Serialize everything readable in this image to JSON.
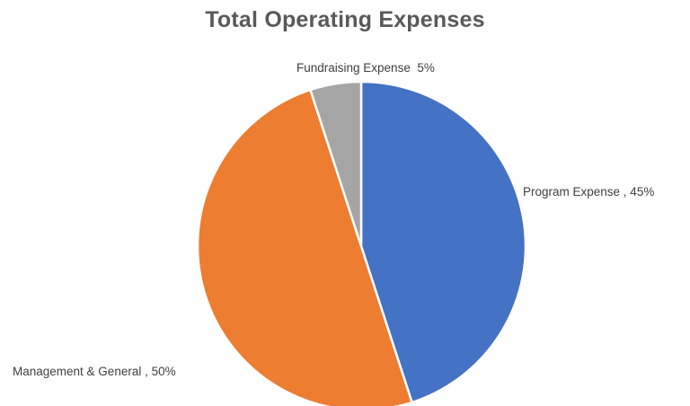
{
  "chart_data": {
    "type": "pie",
    "title": "Total Operating Expenses",
    "slices": [
      {
        "name": "Program Expense",
        "value": 45,
        "label": "Program Expense , 45%",
        "color": "#4472C4"
      },
      {
        "name": "Management & General",
        "value": 50,
        "label": "Management & General , 50%",
        "color": "#ED7D31"
      },
      {
        "name": "Fundraising Expense",
        "value": 5,
        "label": "Fundraising Expense  5%",
        "color": "#A5A5A5"
      }
    ],
    "legend": "none",
    "start_angle": "12 o'clock",
    "direction": "clockwise"
  }
}
